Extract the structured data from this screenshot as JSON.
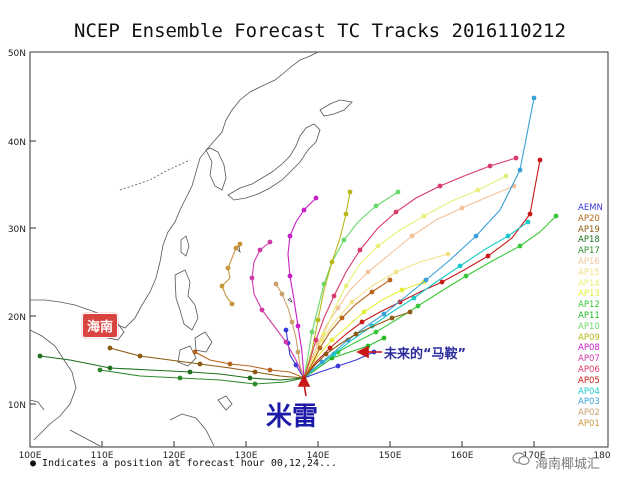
{
  "title": "NCEP Ensemble Forecast TC Tracks 2016110212",
  "footnote": "● Indicates a position at forecast hour 00,12,24...",
  "axes": {
    "lat_labels": [
      "50N",
      "40N",
      "30N",
      "20N",
      "10N"
    ],
    "lon_labels": [
      "100E",
      "110E",
      "120E",
      "130E",
      "140E",
      "150E",
      "160E",
      "170E",
      "180"
    ]
  },
  "legend": [
    {
      "name": "AEMN",
      "color": "#3a3ad8"
    },
    {
      "name": "AP20",
      "color": "#b8651b"
    },
    {
      "name": "AP19",
      "color": "#8c5a12"
    },
    {
      "name": "AP18",
      "color": "#1f6f1f"
    },
    {
      "name": "AP17",
      "color": "#2f8a2f"
    },
    {
      "name": "AP16",
      "color": "#f2c29a"
    },
    {
      "name": "AP15",
      "color": "#f2e28a"
    },
    {
      "name": "AP14",
      "color": "#e8f07a"
    },
    {
      "name": "AP13",
      "color": "#e6ee3a"
    },
    {
      "name": "AP12",
      "color": "#3ac83a"
    },
    {
      "name": "AP11",
      "color": "#28b828"
    },
    {
      "name": "AP10",
      "color": "#6ad86a"
    },
    {
      "name": "AP09",
      "color": "#b8b81a"
    },
    {
      "name": "AP08",
      "color": "#c81ec8"
    },
    {
      "name": "AP07",
      "color": "#d03aa8"
    },
    {
      "name": "AP06",
      "color": "#d83a6a"
    },
    {
      "name": "AP05",
      "color": "#c81818"
    },
    {
      "name": "AP04",
      "color": "#1ec8c8"
    },
    {
      "name": "AP03",
      "color": "#3aa0d8"
    },
    {
      "name": "AP02",
      "color": "#c8a06a"
    },
    {
      "name": "AP01",
      "color": "#c8943a"
    }
  ],
  "annotations": {
    "hainan": "海南",
    "meari": "米雷",
    "future": "未来的“马鞍”"
  },
  "watermark": "海南椰城汇"
}
